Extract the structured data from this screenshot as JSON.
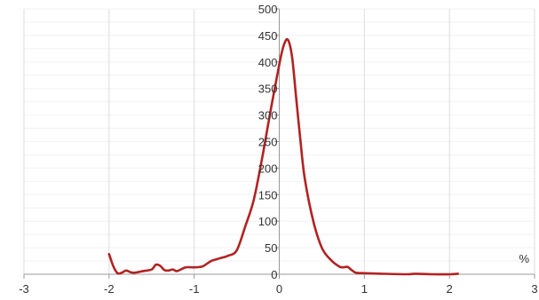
{
  "chart_data": {
    "type": "line",
    "title": "",
    "xlabel": "%",
    "ylabel": "",
    "xlim": [
      -3,
      3
    ],
    "ylim": [
      0,
      500
    ],
    "x_ticks": [
      -3,
      -2,
      -1,
      0,
      1,
      2,
      3
    ],
    "y_ticks": [
      50,
      100,
      150,
      200,
      250,
      300,
      350,
      400,
      450,
      500
    ],
    "x_tick_labels": [
      "-3",
      "-2",
      "-1",
      "0",
      "1",
      "2",
      "3"
    ],
    "y_tick_labels": [
      "50",
      "100",
      "150",
      "200",
      "250",
      "300",
      "350",
      "400",
      "450",
      "500"
    ],
    "grid": true,
    "series": [
      {
        "color": "#b22222",
        "points": [
          [
            -2.0,
            38
          ],
          [
            -1.95,
            15
          ],
          [
            -1.9,
            2
          ],
          [
            -1.85,
            3
          ],
          [
            -1.8,
            7
          ],
          [
            -1.75,
            4
          ],
          [
            -1.7,
            3
          ],
          [
            -1.6,
            6
          ],
          [
            -1.5,
            9
          ],
          [
            -1.45,
            18
          ],
          [
            -1.4,
            16
          ],
          [
            -1.35,
            8
          ],
          [
            -1.3,
            7
          ],
          [
            -1.25,
            9
          ],
          [
            -1.2,
            6
          ],
          [
            -1.1,
            13
          ],
          [
            -1.0,
            13
          ],
          [
            -0.9,
            15
          ],
          [
            -0.8,
            25
          ],
          [
            -0.7,
            30
          ],
          [
            -0.6,
            35
          ],
          [
            -0.5,
            45
          ],
          [
            -0.4,
            90
          ],
          [
            -0.3,
            140
          ],
          [
            -0.2,
            220
          ],
          [
            -0.1,
            310
          ],
          [
            0.0,
            395
          ],
          [
            0.05,
            430
          ],
          [
            0.1,
            442
          ],
          [
            0.15,
            410
          ],
          [
            0.2,
            330
          ],
          [
            0.25,
            250
          ],
          [
            0.3,
            180
          ],
          [
            0.4,
            100
          ],
          [
            0.5,
            50
          ],
          [
            0.6,
            28
          ],
          [
            0.7,
            15
          ],
          [
            0.75,
            13
          ],
          [
            0.8,
            14
          ],
          [
            0.85,
            8
          ],
          [
            0.9,
            3
          ],
          [
            1.0,
            2
          ],
          [
            1.2,
            1
          ],
          [
            1.5,
            0
          ],
          [
            1.6,
            1
          ],
          [
            1.8,
            0
          ],
          [
            2.0,
            0
          ],
          [
            2.1,
            1
          ]
        ]
      }
    ],
    "colors": {
      "grid": "#dddddd",
      "minor_grid": "#f2f2f2",
      "axis": "#999999",
      "text": "#333333"
    }
  }
}
